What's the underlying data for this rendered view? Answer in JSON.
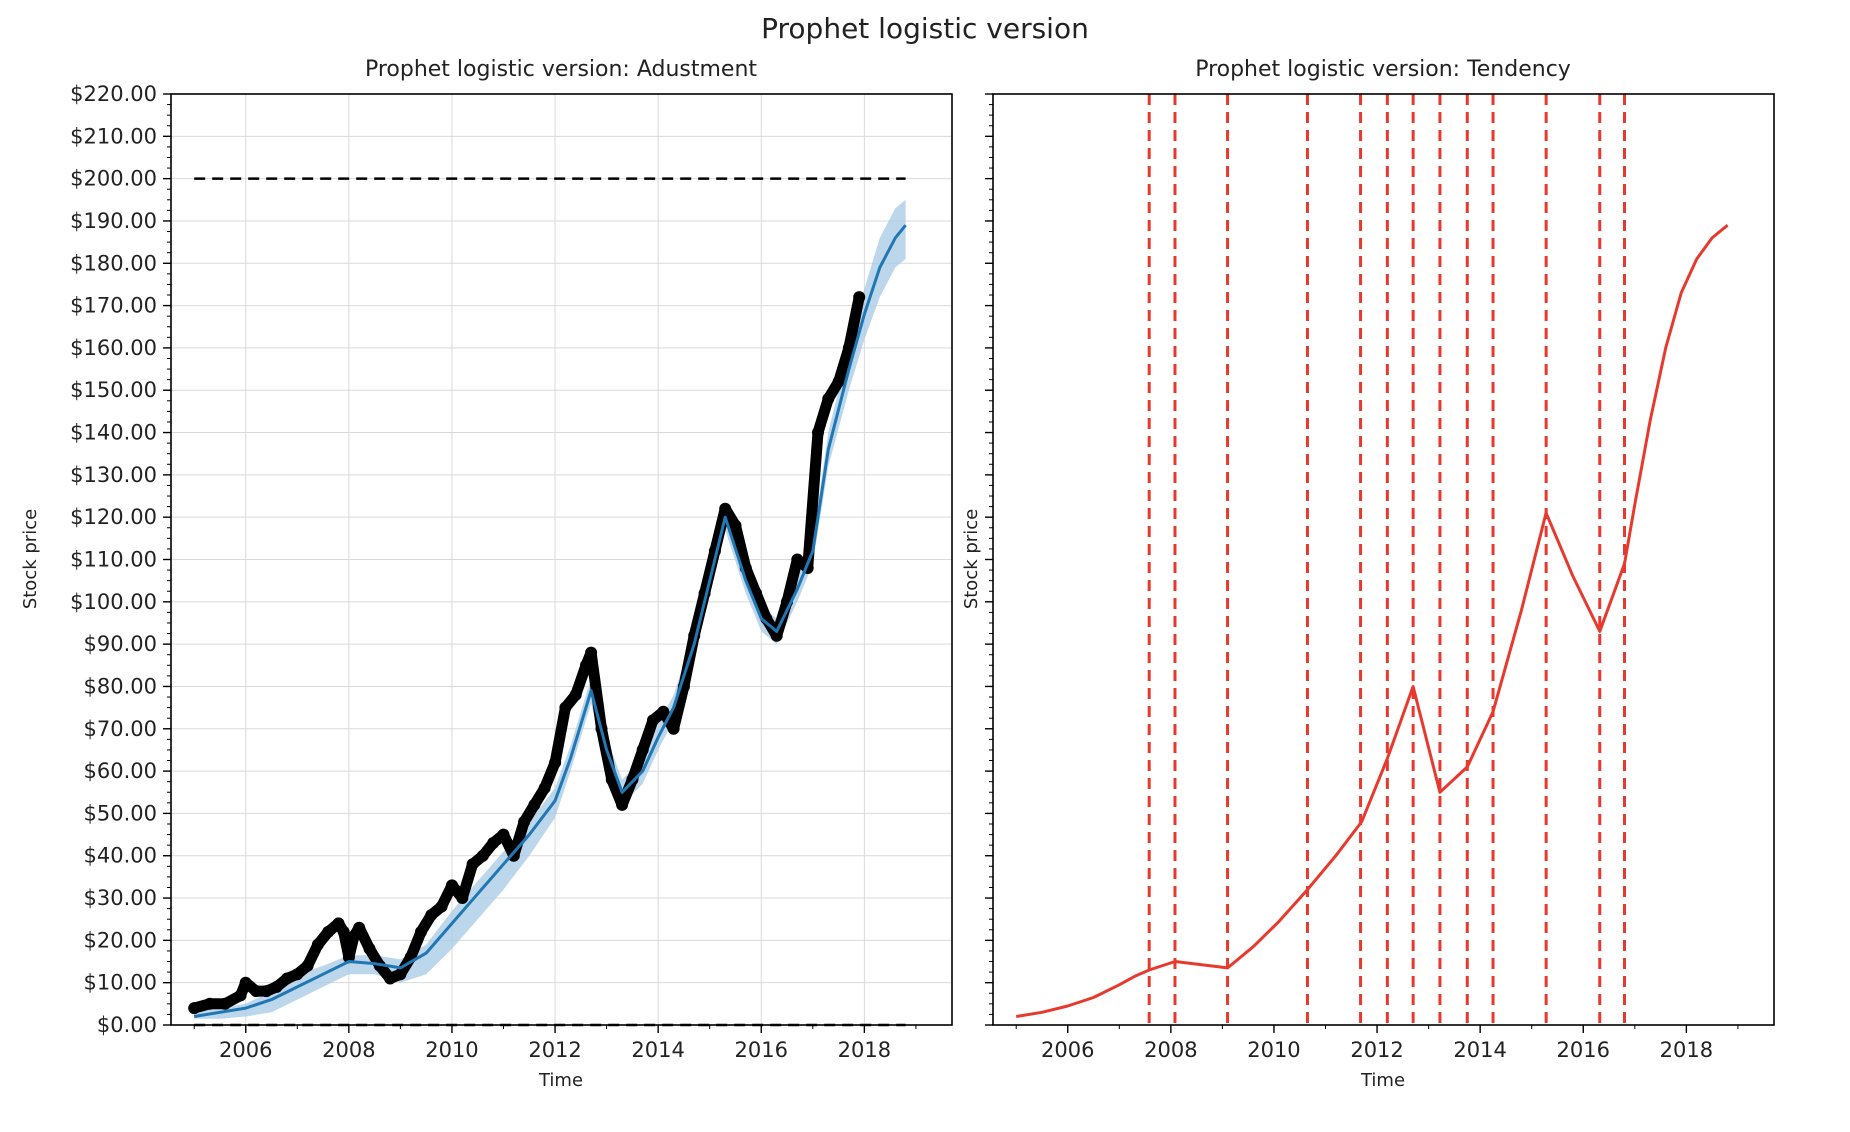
{
  "figure": {
    "title": "Prophet logistic version"
  },
  "colors": {
    "observed": "#000000",
    "forecast": "#1f77b4",
    "band": "#a6c8e6",
    "trend": "#e8392e",
    "cap": "#000000",
    "changepoint": "#e8392e",
    "grid": "#d9d9d9"
  },
  "chart_data": [
    {
      "type": "scatter",
      "title": "Prophet logistic version: Adustment",
      "xlabel": "Time",
      "ylabel": "Stock price",
      "xlim": [
        2004.55,
        2019.7
      ],
      "ylim": [
        0,
        220
      ],
      "x_ticks": [
        2006,
        2008,
        2010,
        2012,
        2014,
        2016,
        2018
      ],
      "x_tick_labels": [
        "2006",
        "2008",
        "2010",
        "2012",
        "2014",
        "2016",
        "2018"
      ],
      "y_ticks": [
        0,
        10,
        20,
        30,
        40,
        50,
        60,
        70,
        80,
        90,
        100,
        110,
        120,
        130,
        140,
        150,
        160,
        170,
        180,
        190,
        200,
        210,
        220
      ],
      "y_tick_labels": [
        "$0.00",
        "$10.00",
        "$20.00",
        "$30.00",
        "$40.00",
        "$50.00",
        "$60.00",
        "$70.00",
        "$80.00",
        "$90.00",
        "$100.00",
        "$110.00",
        "$120.00",
        "$130.00",
        "$140.00",
        "$150.00",
        "$160.00",
        "$170.00",
        "$180.00",
        "$190.00",
        "$200.00",
        "$210.00",
        "$220.00"
      ],
      "grid": true,
      "cap": 200,
      "floor": 0,
      "cap_x": [
        2005.0,
        2018.8
      ],
      "observed": {
        "x": [
          2005.0,
          2005.3,
          2005.6,
          2005.9,
          2006.0,
          2006.2,
          2006.4,
          2006.6,
          2006.8,
          2007.0,
          2007.2,
          2007.4,
          2007.6,
          2007.8,
          2007.9,
          2008.0,
          2008.1,
          2008.2,
          2008.4,
          2008.6,
          2008.8,
          2009.0,
          2009.2,
          2009.4,
          2009.6,
          2009.8,
          2010.0,
          2010.2,
          2010.4,
          2010.6,
          2010.8,
          2011.0,
          2011.2,
          2011.4,
          2011.6,
          2011.8,
          2012.0,
          2012.2,
          2012.4,
          2012.6,
          2012.7,
          2012.9,
          2013.1,
          2013.3,
          2013.5,
          2013.7,
          2013.9,
          2014.1,
          2014.3,
          2014.5,
          2014.7,
          2014.9,
          2015.1,
          2015.3,
          2015.5,
          2015.7,
          2015.9,
          2016.1,
          2016.3,
          2016.5,
          2016.7,
          2016.9,
          2017.1,
          2017.3,
          2017.5,
          2017.7,
          2017.9
        ],
        "y": [
          4,
          5,
          5,
          7,
          10,
          8,
          8,
          9,
          11,
          12,
          14,
          19,
          22,
          24,
          22,
          16,
          21,
          23,
          18,
          14,
          11,
          12,
          16,
          22,
          26,
          28,
          33,
          30,
          38,
          40,
          43,
          45,
          40,
          48,
          52,
          56,
          62,
          75,
          78,
          85,
          88,
          70,
          58,
          52,
          58,
          65,
          72,
          74,
          70,
          80,
          92,
          102,
          112,
          122,
          118,
          108,
          102,
          96,
          92,
          100,
          110,
          108,
          140,
          148,
          152,
          160,
          172
        ]
      },
      "forecast": {
        "x": [
          2005.0,
          2005.5,
          2006.0,
          2006.5,
          2007.0,
          2007.5,
          2008.0,
          2008.5,
          2009.0,
          2009.5,
          2010.0,
          2010.5,
          2011.0,
          2011.5,
          2012.0,
          2012.3,
          2012.7,
          2013.0,
          2013.3,
          2013.7,
          2014.0,
          2014.3,
          2014.7,
          2015.0,
          2015.3,
          2015.7,
          2016.0,
          2016.3,
          2016.7,
          2017.0,
          2017.3,
          2017.7,
          2018.0,
          2018.3,
          2018.6,
          2018.8
        ],
        "y": [
          2,
          3,
          4,
          6,
          9,
          12,
          15,
          14.5,
          13.5,
          17,
          24,
          31,
          38,
          45,
          53,
          63,
          79,
          65,
          55,
          60,
          68,
          75,
          90,
          105,
          120,
          105,
          96,
          93,
          103,
          112,
          136,
          155,
          168,
          179,
          186,
          189
        ],
        "lower": [
          1.5,
          1.5,
          2,
          3,
          6,
          9,
          12,
          12,
          10,
          12,
          18,
          25,
          32,
          40,
          49,
          60,
          76,
          62,
          52,
          57,
          65,
          72,
          87,
          102,
          117,
          102,
          93,
          90,
          100,
          109,
          132,
          150,
          162,
          172,
          179,
          181
        ],
        "upper": [
          3,
          4,
          5,
          8,
          12,
          14,
          16.5,
          16.5,
          15.5,
          19,
          27,
          34,
          41,
          48,
          56,
          66,
          82,
          68,
          58,
          63,
          71,
          78,
          93,
          108,
          123,
          108,
          99,
          96,
          106,
          115,
          140,
          160,
          174,
          186,
          193,
          195
        ]
      }
    },
    {
      "type": "line",
      "title": "Prophet logistic version: Tendency",
      "xlabel": "Time",
      "ylabel": "Stock price",
      "xlim": [
        2004.55,
        2019.7
      ],
      "ylim": [
        0,
        220
      ],
      "x_ticks": [
        2006,
        2008,
        2010,
        2012,
        2014,
        2016,
        2018
      ],
      "x_tick_labels": [
        "2006",
        "2008",
        "2010",
        "2012",
        "2014",
        "2016",
        "2018"
      ],
      "y_ticks": [
        0,
        10,
        20,
        30,
        40,
        50,
        60,
        70,
        80,
        90,
        100,
        110,
        120,
        130,
        140,
        150,
        160,
        170,
        180,
        190,
        200,
        210,
        220
      ],
      "grid": false,
      "trend": {
        "x": [
          2005.0,
          2005.5,
          2006.0,
          2006.5,
          2007.0,
          2007.3,
          2007.58,
          2008.08,
          2009.1,
          2009.6,
          2010.1,
          2010.65,
          2011.2,
          2011.7,
          2012.2,
          2012.7,
          2013.22,
          2013.75,
          2014.25,
          2014.8,
          2015.28,
          2015.8,
          2016.32,
          2016.8,
          2017.0,
          2017.3,
          2017.6,
          2017.9,
          2018.2,
          2018.5,
          2018.8
        ],
        "y": [
          2,
          3,
          4.5,
          6.5,
          9.5,
          11.5,
          13,
          15,
          13.5,
          18.5,
          24.5,
          32,
          40,
          48,
          63,
          80,
          55,
          61,
          74,
          98,
          121,
          106,
          93,
          109,
          123,
          143,
          160,
          173,
          181,
          186,
          189
        ]
      },
      "changepoints": [
        2007.58,
        2008.08,
        2009.1,
        2010.65,
        2011.68,
        2012.2,
        2012.7,
        2013.22,
        2013.75,
        2014.25,
        2015.28,
        2016.32,
        2016.8
      ]
    }
  ]
}
